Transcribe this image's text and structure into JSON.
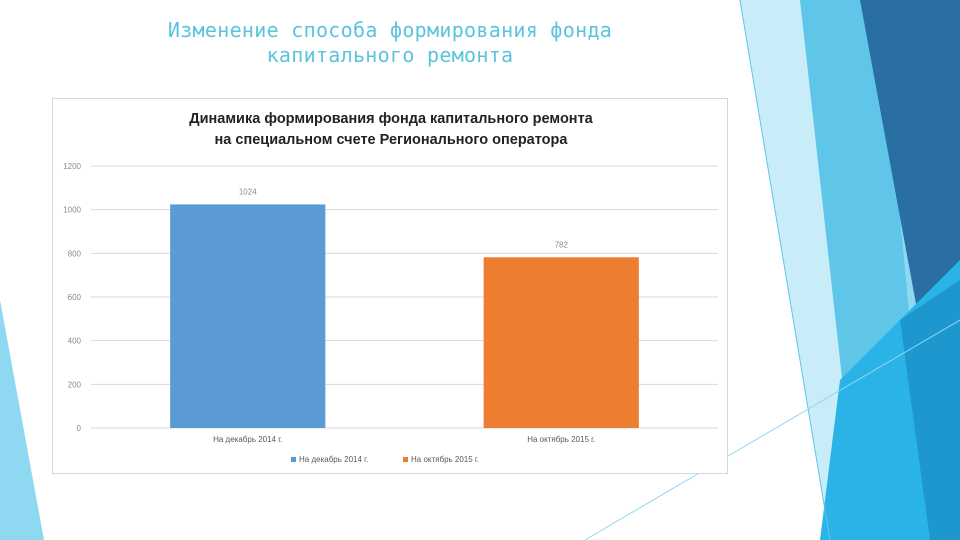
{
  "slide": {
    "title_line1": "Изменение способа формирования фонда",
    "title_line2": "капитального ремонта"
  },
  "colors": {
    "title": "#5bc4dd",
    "series_1": "#5b9bd5",
    "series_2": "#ed7d31",
    "gridline": "#d9d9d9",
    "decor_dark": "#2a6fa3",
    "decor_mid": "#29b3e6",
    "decor_light": "#8fd8f2"
  },
  "chart_data": {
    "type": "bar",
    "title_line1": "Динамика формирования фонда капитального ремонта",
    "title_line2": "на специальном счете Регионального оператора",
    "categories": [
      "На декабрь 2014 г.",
      "На октябрь 2015 г."
    ],
    "values": [
      1024,
      782
    ],
    "data_labels": [
      "1024",
      "782"
    ],
    "ylim": [
      0,
      1200
    ],
    "yticks": [
      0,
      200,
      400,
      600,
      800,
      1000,
      1200
    ],
    "grid": true,
    "legend": {
      "placement": "bottom",
      "entries": [
        "На декабрь 2014 г.",
        "На октябрь 2015 г."
      ]
    }
  }
}
